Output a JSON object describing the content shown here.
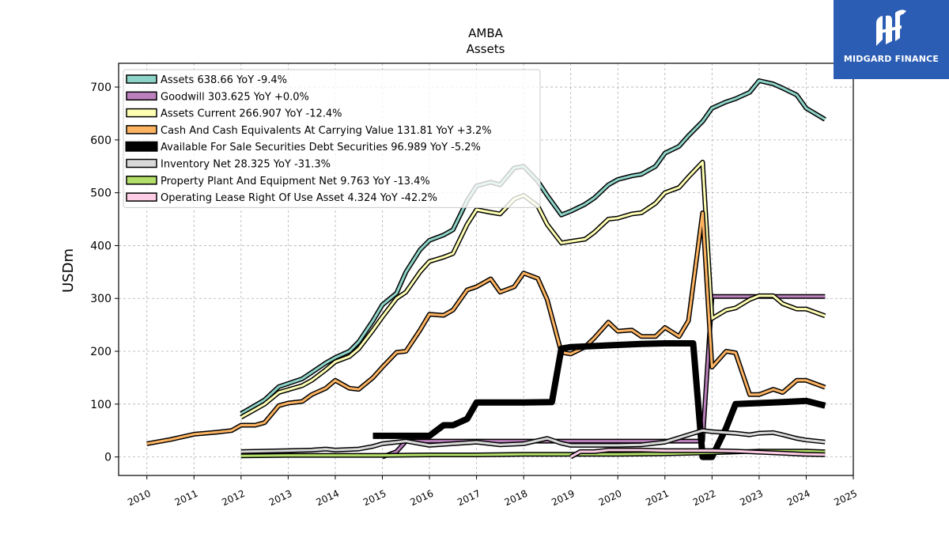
{
  "chart_data": {
    "type": "line",
    "title": "AMBA",
    "subtitle": "Assets",
    "xlabel": "",
    "ylabel": "USDm",
    "xlim": [
      2009.4,
      2025.0
    ],
    "ylim": [
      -35,
      745
    ],
    "x_ticks": [
      "2010",
      "2011",
      "2012",
      "2013",
      "2014",
      "2015",
      "2016",
      "2017",
      "2018",
      "2019",
      "2020",
      "2021",
      "2022",
      "2023",
      "2024",
      "2025"
    ],
    "y_ticks": [
      "0",
      "100",
      "200",
      "300",
      "400",
      "500",
      "600",
      "700"
    ],
    "grid": true,
    "legend_position": "top-left",
    "series": [
      {
        "name": "Assets  638.66 YoY -9.4%",
        "color": "#8dd3c7",
        "width": 3,
        "points": [
          [
            2012.0,
            82
          ],
          [
            2012.5,
            108
          ],
          [
            2012.8,
            133
          ],
          [
            2013.3,
            148
          ],
          [
            2013.5,
            160
          ],
          [
            2013.8,
            178
          ],
          [
            2014.0,
            188
          ],
          [
            2014.3,
            200
          ],
          [
            2014.5,
            218
          ],
          [
            2014.8,
            258
          ],
          [
            2015.0,
            288
          ],
          [
            2015.3,
            310
          ],
          [
            2015.5,
            350
          ],
          [
            2015.8,
            392
          ],
          [
            2016.0,
            410
          ],
          [
            2016.3,
            420
          ],
          [
            2016.5,
            430
          ],
          [
            2016.8,
            485
          ],
          [
            2017.0,
            513
          ],
          [
            2017.3,
            520
          ],
          [
            2017.5,
            515
          ],
          [
            2017.8,
            547
          ],
          [
            2018.0,
            550
          ],
          [
            2018.3,
            522
          ],
          [
            2018.5,
            495
          ],
          [
            2018.8,
            458
          ],
          [
            2019.0,
            465
          ],
          [
            2019.3,
            478
          ],
          [
            2019.5,
            490
          ],
          [
            2019.8,
            515
          ],
          [
            2020.0,
            525
          ],
          [
            2020.3,
            532
          ],
          [
            2020.5,
            535
          ],
          [
            2020.8,
            550
          ],
          [
            2021.0,
            575
          ],
          [
            2021.3,
            588
          ],
          [
            2021.5,
            608
          ],
          [
            2021.8,
            635
          ],
          [
            2022.0,
            660
          ],
          [
            2022.3,
            672
          ],
          [
            2022.5,
            678
          ],
          [
            2022.8,
            690
          ],
          [
            2023.0,
            712
          ],
          [
            2023.3,
            706
          ],
          [
            2023.5,
            698
          ],
          [
            2023.8,
            685
          ],
          [
            2024.0,
            660
          ],
          [
            2024.4,
            638.66
          ]
        ]
      },
      {
        "name": "Goodwill  303.625 YoY +0.0%",
        "color": "#bc80bd",
        "width": 3,
        "points": [
          [
            2015.0,
            0
          ],
          [
            2015.3,
            10
          ],
          [
            2015.5,
            30
          ],
          [
            2016.0,
            30
          ],
          [
            2017.0,
            30
          ],
          [
            2018.0,
            30
          ],
          [
            2019.0,
            30
          ],
          [
            2020.0,
            30
          ],
          [
            2021.0,
            30
          ],
          [
            2021.8,
            30
          ],
          [
            2022.0,
            303.625
          ],
          [
            2023.0,
            303.625
          ],
          [
            2024.4,
            303.625
          ]
        ]
      },
      {
        "name": "Assets Current  266.907 YoY -12.4%",
        "color": "#ffffb3",
        "width": 3,
        "points": [
          [
            2012.0,
            75
          ],
          [
            2012.5,
            100
          ],
          [
            2012.8,
            122
          ],
          [
            2013.3,
            135
          ],
          [
            2013.5,
            145
          ],
          [
            2013.8,
            165
          ],
          [
            2014.0,
            180
          ],
          [
            2014.3,
            190
          ],
          [
            2014.5,
            205
          ],
          [
            2014.8,
            240
          ],
          [
            2015.0,
            265
          ],
          [
            2015.3,
            300
          ],
          [
            2015.5,
            312
          ],
          [
            2015.8,
            350
          ],
          [
            2016.0,
            370
          ],
          [
            2016.3,
            378
          ],
          [
            2016.5,
            385
          ],
          [
            2016.8,
            440
          ],
          [
            2017.0,
            468
          ],
          [
            2017.3,
            463
          ],
          [
            2017.5,
            460
          ],
          [
            2017.8,
            488
          ],
          [
            2018.0,
            495
          ],
          [
            2018.3,
            475
          ],
          [
            2018.5,
            440
          ],
          [
            2018.8,
            405
          ],
          [
            2019.0,
            408
          ],
          [
            2019.3,
            412
          ],
          [
            2019.5,
            425
          ],
          [
            2019.8,
            450
          ],
          [
            2020.0,
            452
          ],
          [
            2020.3,
            460
          ],
          [
            2020.5,
            462
          ],
          [
            2020.8,
            480
          ],
          [
            2021.0,
            500
          ],
          [
            2021.3,
            510
          ],
          [
            2021.5,
            530
          ],
          [
            2021.8,
            558
          ],
          [
            2022.0,
            262
          ],
          [
            2022.3,
            278
          ],
          [
            2022.5,
            282
          ],
          [
            2022.8,
            298
          ],
          [
            2023.0,
            305
          ],
          [
            2023.3,
            305
          ],
          [
            2023.5,
            290
          ],
          [
            2023.8,
            280
          ],
          [
            2024.0,
            280
          ],
          [
            2024.4,
            266.907
          ]
        ]
      },
      {
        "name": "Cash And Cash Equivalents At Carrying Value  131.81 YoY +3.2%",
        "color": "#fdb462",
        "width": 3,
        "points": [
          [
            2010.0,
            25
          ],
          [
            2010.5,
            33
          ],
          [
            2011.0,
            43
          ],
          [
            2011.5,
            47
          ],
          [
            2011.8,
            50
          ],
          [
            2012.0,
            60
          ],
          [
            2012.3,
            60
          ],
          [
            2012.5,
            65
          ],
          [
            2012.8,
            97
          ],
          [
            2013.0,
            102
          ],
          [
            2013.3,
            105
          ],
          [
            2013.5,
            118
          ],
          [
            2013.8,
            130
          ],
          [
            2014.0,
            145
          ],
          [
            2014.3,
            130
          ],
          [
            2014.5,
            128
          ],
          [
            2014.8,
            150
          ],
          [
            2015.0,
            170
          ],
          [
            2015.3,
            198
          ],
          [
            2015.5,
            200
          ],
          [
            2015.8,
            240
          ],
          [
            2016.0,
            270
          ],
          [
            2016.3,
            268
          ],
          [
            2016.5,
            278
          ],
          [
            2016.8,
            316
          ],
          [
            2017.0,
            322
          ],
          [
            2017.3,
            337
          ],
          [
            2017.5,
            312
          ],
          [
            2017.8,
            322
          ],
          [
            2018.0,
            348
          ],
          [
            2018.3,
            338
          ],
          [
            2018.5,
            298
          ],
          [
            2018.8,
            198
          ],
          [
            2019.0,
            195
          ],
          [
            2019.3,
            208
          ],
          [
            2019.5,
            225
          ],
          [
            2019.8,
            255
          ],
          [
            2020.0,
            238
          ],
          [
            2020.3,
            240
          ],
          [
            2020.5,
            228
          ],
          [
            2020.8,
            228
          ],
          [
            2021.0,
            245
          ],
          [
            2021.3,
            228
          ],
          [
            2021.5,
            258
          ],
          [
            2021.8,
            462
          ],
          [
            2022.0,
            170
          ],
          [
            2022.3,
            200
          ],
          [
            2022.5,
            197
          ],
          [
            2022.8,
            118
          ],
          [
            2023.0,
            118
          ],
          [
            2023.3,
            128
          ],
          [
            2023.5,
            122
          ],
          [
            2023.8,
            145
          ],
          [
            2024.0,
            145
          ],
          [
            2024.4,
            131.81
          ]
        ]
      },
      {
        "name": "Available For Sale Securities Debt Securities  96.989 YoY -5.2%",
        "color": "#000000",
        "width": 5,
        "points": [
          [
            2014.8,
            40
          ],
          [
            2015.3,
            40
          ],
          [
            2015.5,
            40
          ],
          [
            2016.0,
            40
          ],
          [
            2016.3,
            60
          ],
          [
            2016.5,
            60
          ],
          [
            2016.8,
            72
          ],
          [
            2017.0,
            103
          ],
          [
            2017.5,
            103
          ],
          [
            2018.0,
            103
          ],
          [
            2018.6,
            104
          ],
          [
            2018.8,
            205
          ],
          [
            2019.0,
            208
          ],
          [
            2019.5,
            210
          ],
          [
            2020.0,
            212
          ],
          [
            2020.5,
            214
          ],
          [
            2021.0,
            215
          ],
          [
            2021.6,
            215
          ],
          [
            2021.8,
            0
          ],
          [
            2022.0,
            0
          ],
          [
            2022.3,
            55
          ],
          [
            2022.5,
            100
          ],
          [
            2023.0,
            102
          ],
          [
            2023.5,
            104
          ],
          [
            2024.0,
            106
          ],
          [
            2024.4,
            96.989
          ]
        ]
      },
      {
        "name": "Inventory Net  28.325 YoY -31.3%",
        "color": "#d9d9d9",
        "width": 3,
        "points": [
          [
            2012.0,
            10
          ],
          [
            2012.5,
            11
          ],
          [
            2013.0,
            12
          ],
          [
            2013.5,
            13
          ],
          [
            2013.8,
            15
          ],
          [
            2014.0,
            13
          ],
          [
            2014.5,
            15
          ],
          [
            2014.8,
            20
          ],
          [
            2015.0,
            25
          ],
          [
            2015.5,
            30
          ],
          [
            2016.0,
            22
          ],
          [
            2016.5,
            25
          ],
          [
            2017.0,
            28
          ],
          [
            2017.5,
            23
          ],
          [
            2018.0,
            25
          ],
          [
            2018.5,
            35
          ],
          [
            2018.8,
            26
          ],
          [
            2019.0,
            22
          ],
          [
            2019.5,
            22
          ],
          [
            2020.0,
            22
          ],
          [
            2020.5,
            23
          ],
          [
            2021.0,
            28
          ],
          [
            2021.5,
            42
          ],
          [
            2021.8,
            50
          ],
          [
            2022.0,
            48
          ],
          [
            2022.5,
            45
          ],
          [
            2022.8,
            42
          ],
          [
            2023.0,
            45
          ],
          [
            2023.3,
            46
          ],
          [
            2023.5,
            42
          ],
          [
            2023.8,
            35
          ],
          [
            2024.0,
            32
          ],
          [
            2024.4,
            28.325
          ]
        ]
      },
      {
        "name": "Property Plant And Equipment Net  9.763 YoY -13.4%",
        "color": "#b3de69",
        "width": 3,
        "points": [
          [
            2012.0,
            2
          ],
          [
            2013.0,
            3
          ],
          [
            2014.0,
            3
          ],
          [
            2015.0,
            3
          ],
          [
            2016.0,
            4
          ],
          [
            2017.0,
            4
          ],
          [
            2018.0,
            5
          ],
          [
            2019.0,
            5
          ],
          [
            2020.0,
            5
          ],
          [
            2021.0,
            6
          ],
          [
            2022.0,
            8
          ],
          [
            2023.0,
            11
          ],
          [
            2023.5,
            11
          ],
          [
            2024.0,
            11
          ],
          [
            2024.4,
            9.763
          ]
        ]
      },
      {
        "name": "Operating Lease Right Of Use Asset  4.324 YoY -42.2%",
        "color": "#fccde5",
        "width": 3,
        "points": [
          [
            2019.0,
            0
          ],
          [
            2019.2,
            10
          ],
          [
            2019.5,
            10
          ],
          [
            2019.8,
            13
          ],
          [
            2020.0,
            13
          ],
          [
            2020.5,
            13
          ],
          [
            2021.0,
            12
          ],
          [
            2021.5,
            12
          ],
          [
            2022.0,
            12
          ],
          [
            2022.5,
            11
          ],
          [
            2023.0,
            9
          ],
          [
            2023.5,
            7
          ],
          [
            2024.0,
            5
          ],
          [
            2024.4,
            4.324
          ]
        ]
      }
    ]
  },
  "logo": {
    "text": "MIDGARD FINANCE"
  }
}
